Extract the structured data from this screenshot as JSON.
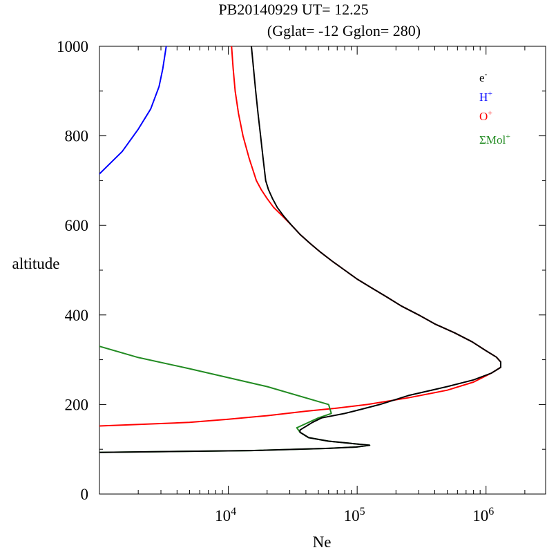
{
  "header": {
    "title_line1": "PB20140929   UT=  12.25",
    "title_line2": "(Gglat= -12   Gglon=  280)"
  },
  "chart_data": {
    "type": "line",
    "title": "PB20140929   UT=  12.25",
    "subtitle": "(Gglat= -12   Gglon=  280)",
    "xlabel": "Ne",
    "ylabel": "altitude",
    "xscale": "log",
    "xlim": [
      1000,
      2900000
    ],
    "ylim": [
      0,
      1000
    ],
    "yticks": [
      0,
      200,
      400,
      600,
      800,
      1000
    ],
    "ytick_labels": [
      "0",
      "200",
      "400",
      "600",
      "800",
      "1000"
    ],
    "xticks": [
      10000,
      100000,
      1000000
    ],
    "xtick_labels": [
      {
        "base": "10",
        "exp": "4"
      },
      {
        "base": "10",
        "exp": "5"
      },
      {
        "base": "10",
        "exp": "6"
      }
    ],
    "legend_position": "top-right",
    "grid": false,
    "series": [
      {
        "name": "e",
        "name_sup": "-",
        "color": "#000000",
        "points": [
          [
            1000,
            93
          ],
          [
            15000,
            97
          ],
          [
            60000,
            102
          ],
          [
            98000,
            105
          ],
          [
            125000,
            109
          ],
          [
            60000,
            118
          ],
          [
            42000,
            126
          ],
          [
            36000,
            138
          ],
          [
            36000,
            143
          ],
          [
            45000,
            160
          ],
          [
            53000,
            170
          ],
          [
            80000,
            180
          ],
          [
            110000,
            190
          ],
          [
            150000,
            200
          ],
          [
            250000,
            220
          ],
          [
            500000,
            240
          ],
          [
            800000,
            255
          ],
          [
            1100000,
            270
          ],
          [
            1300000,
            283
          ],
          [
            1300000,
            295
          ],
          [
            1200000,
            306
          ],
          [
            1000000,
            320
          ],
          [
            780000,
            340
          ],
          [
            570000,
            360
          ],
          [
            400000,
            380
          ],
          [
            300000,
            400
          ],
          [
            220000,
            420
          ],
          [
            170000,
            440
          ],
          [
            130000,
            460
          ],
          [
            100000,
            480
          ],
          [
            80000,
            500
          ],
          [
            64000,
            520
          ],
          [
            52000,
            540
          ],
          [
            43000,
            560
          ],
          [
            36000,
            580
          ],
          [
            31000,
            600
          ],
          [
            27000,
            620
          ],
          [
            24000,
            640
          ],
          [
            22000,
            660
          ],
          [
            20500,
            680
          ],
          [
            19500,
            700
          ],
          [
            18600,
            750
          ],
          [
            17800,
            800
          ],
          [
            17000,
            850
          ],
          [
            16300,
            900
          ],
          [
            15700,
            950
          ],
          [
            15100,
            1000
          ]
        ]
      },
      {
        "name": "H",
        "name_sup": "+",
        "color": "#0000ff",
        "points": [
          [
            1000,
            715
          ],
          [
            1500,
            765
          ],
          [
            2000,
            815
          ],
          [
            2500,
            860
          ],
          [
            2900,
            910
          ],
          [
            3100,
            950
          ],
          [
            3300,
            1000
          ]
        ]
      },
      {
        "name": "O",
        "name_sup": "+",
        "color": "#ff0000",
        "points": [
          [
            1000,
            152
          ],
          [
            5000,
            160
          ],
          [
            10000,
            167
          ],
          [
            20000,
            175
          ],
          [
            40000,
            185
          ],
          [
            70000,
            192
          ],
          [
            120000,
            200
          ],
          [
            250000,
            215
          ],
          [
            500000,
            232
          ],
          [
            800000,
            250
          ],
          [
            1100000,
            270
          ],
          [
            1300000,
            283
          ],
          [
            1300000,
            295
          ],
          [
            1200000,
            306
          ],
          [
            1000000,
            320
          ],
          [
            780000,
            340
          ],
          [
            570000,
            360
          ],
          [
            400000,
            380
          ],
          [
            300000,
            400
          ],
          [
            220000,
            420
          ],
          [
            170000,
            440
          ],
          [
            130000,
            460
          ],
          [
            100000,
            480
          ],
          [
            80000,
            500
          ],
          [
            64000,
            520
          ],
          [
            52000,
            540
          ],
          [
            43000,
            560
          ],
          [
            36000,
            580
          ],
          [
            31000,
            600
          ],
          [
            26500,
            620
          ],
          [
            22500,
            640
          ],
          [
            20000,
            660
          ],
          [
            18000,
            680
          ],
          [
            16500,
            700
          ],
          [
            14500,
            750
          ],
          [
            13000,
            800
          ],
          [
            12000,
            850
          ],
          [
            11300,
            900
          ],
          [
            10900,
            950
          ],
          [
            10600,
            1000
          ]
        ]
      },
      {
        "name": "ΣMol",
        "name_sup": "+",
        "color": "#228b22",
        "points": [
          [
            1000,
            93
          ],
          [
            15000,
            97
          ],
          [
            60000,
            102
          ],
          [
            98000,
            105
          ],
          [
            125000,
            109
          ],
          [
            60000,
            118
          ],
          [
            42000,
            126
          ],
          [
            36000,
            138
          ],
          [
            34000,
            148
          ],
          [
            50000,
            170
          ],
          [
            63000,
            180
          ],
          [
            60000,
            200
          ],
          [
            20000,
            240
          ],
          [
            5000,
            280
          ],
          [
            2000,
            305
          ],
          [
            1000,
            330
          ]
        ]
      }
    ]
  }
}
